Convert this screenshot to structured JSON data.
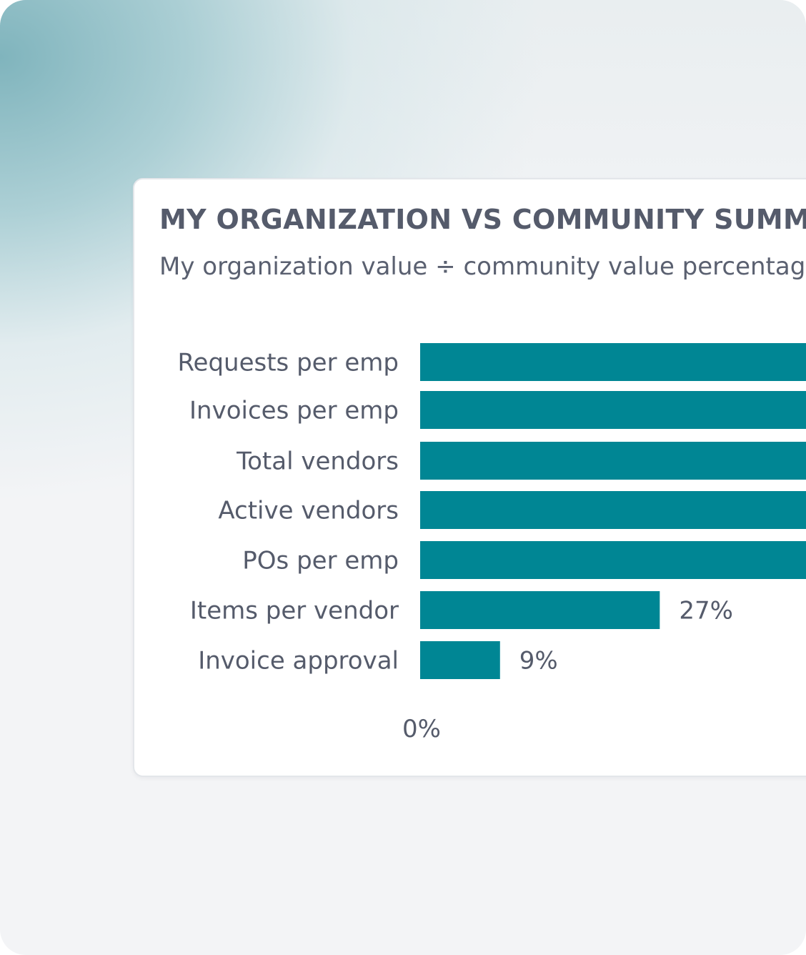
{
  "colors": {
    "bar": "#008694",
    "text": "#555b6b",
    "card_background": "#ffffff",
    "page_background": "#f3f4f6",
    "gradient_teal": "#7ab1ba"
  },
  "chart_data": {
    "type": "bar",
    "orientation": "horizontal",
    "title": "MY ORGANIZATION VS COMMUNITY SUMMAR",
    "subtitle": "My organization value ÷ community value percentage",
    "categories": [
      "Requests per emp",
      "Invoices per emp",
      "Total vendors",
      "Active vendors",
      "POs per emp",
      "Items per vendor",
      "Invoice approval"
    ],
    "values": [
      null,
      null,
      null,
      null,
      null,
      27,
      9
    ],
    "value_labels": [
      "",
      "",
      "",
      "",
      "",
      "27%",
      "9%"
    ],
    "x_tick_labels": [
      "0%"
    ],
    "xlim": [
      0,
      100
    ],
    "grid": false,
    "legend": "none"
  }
}
